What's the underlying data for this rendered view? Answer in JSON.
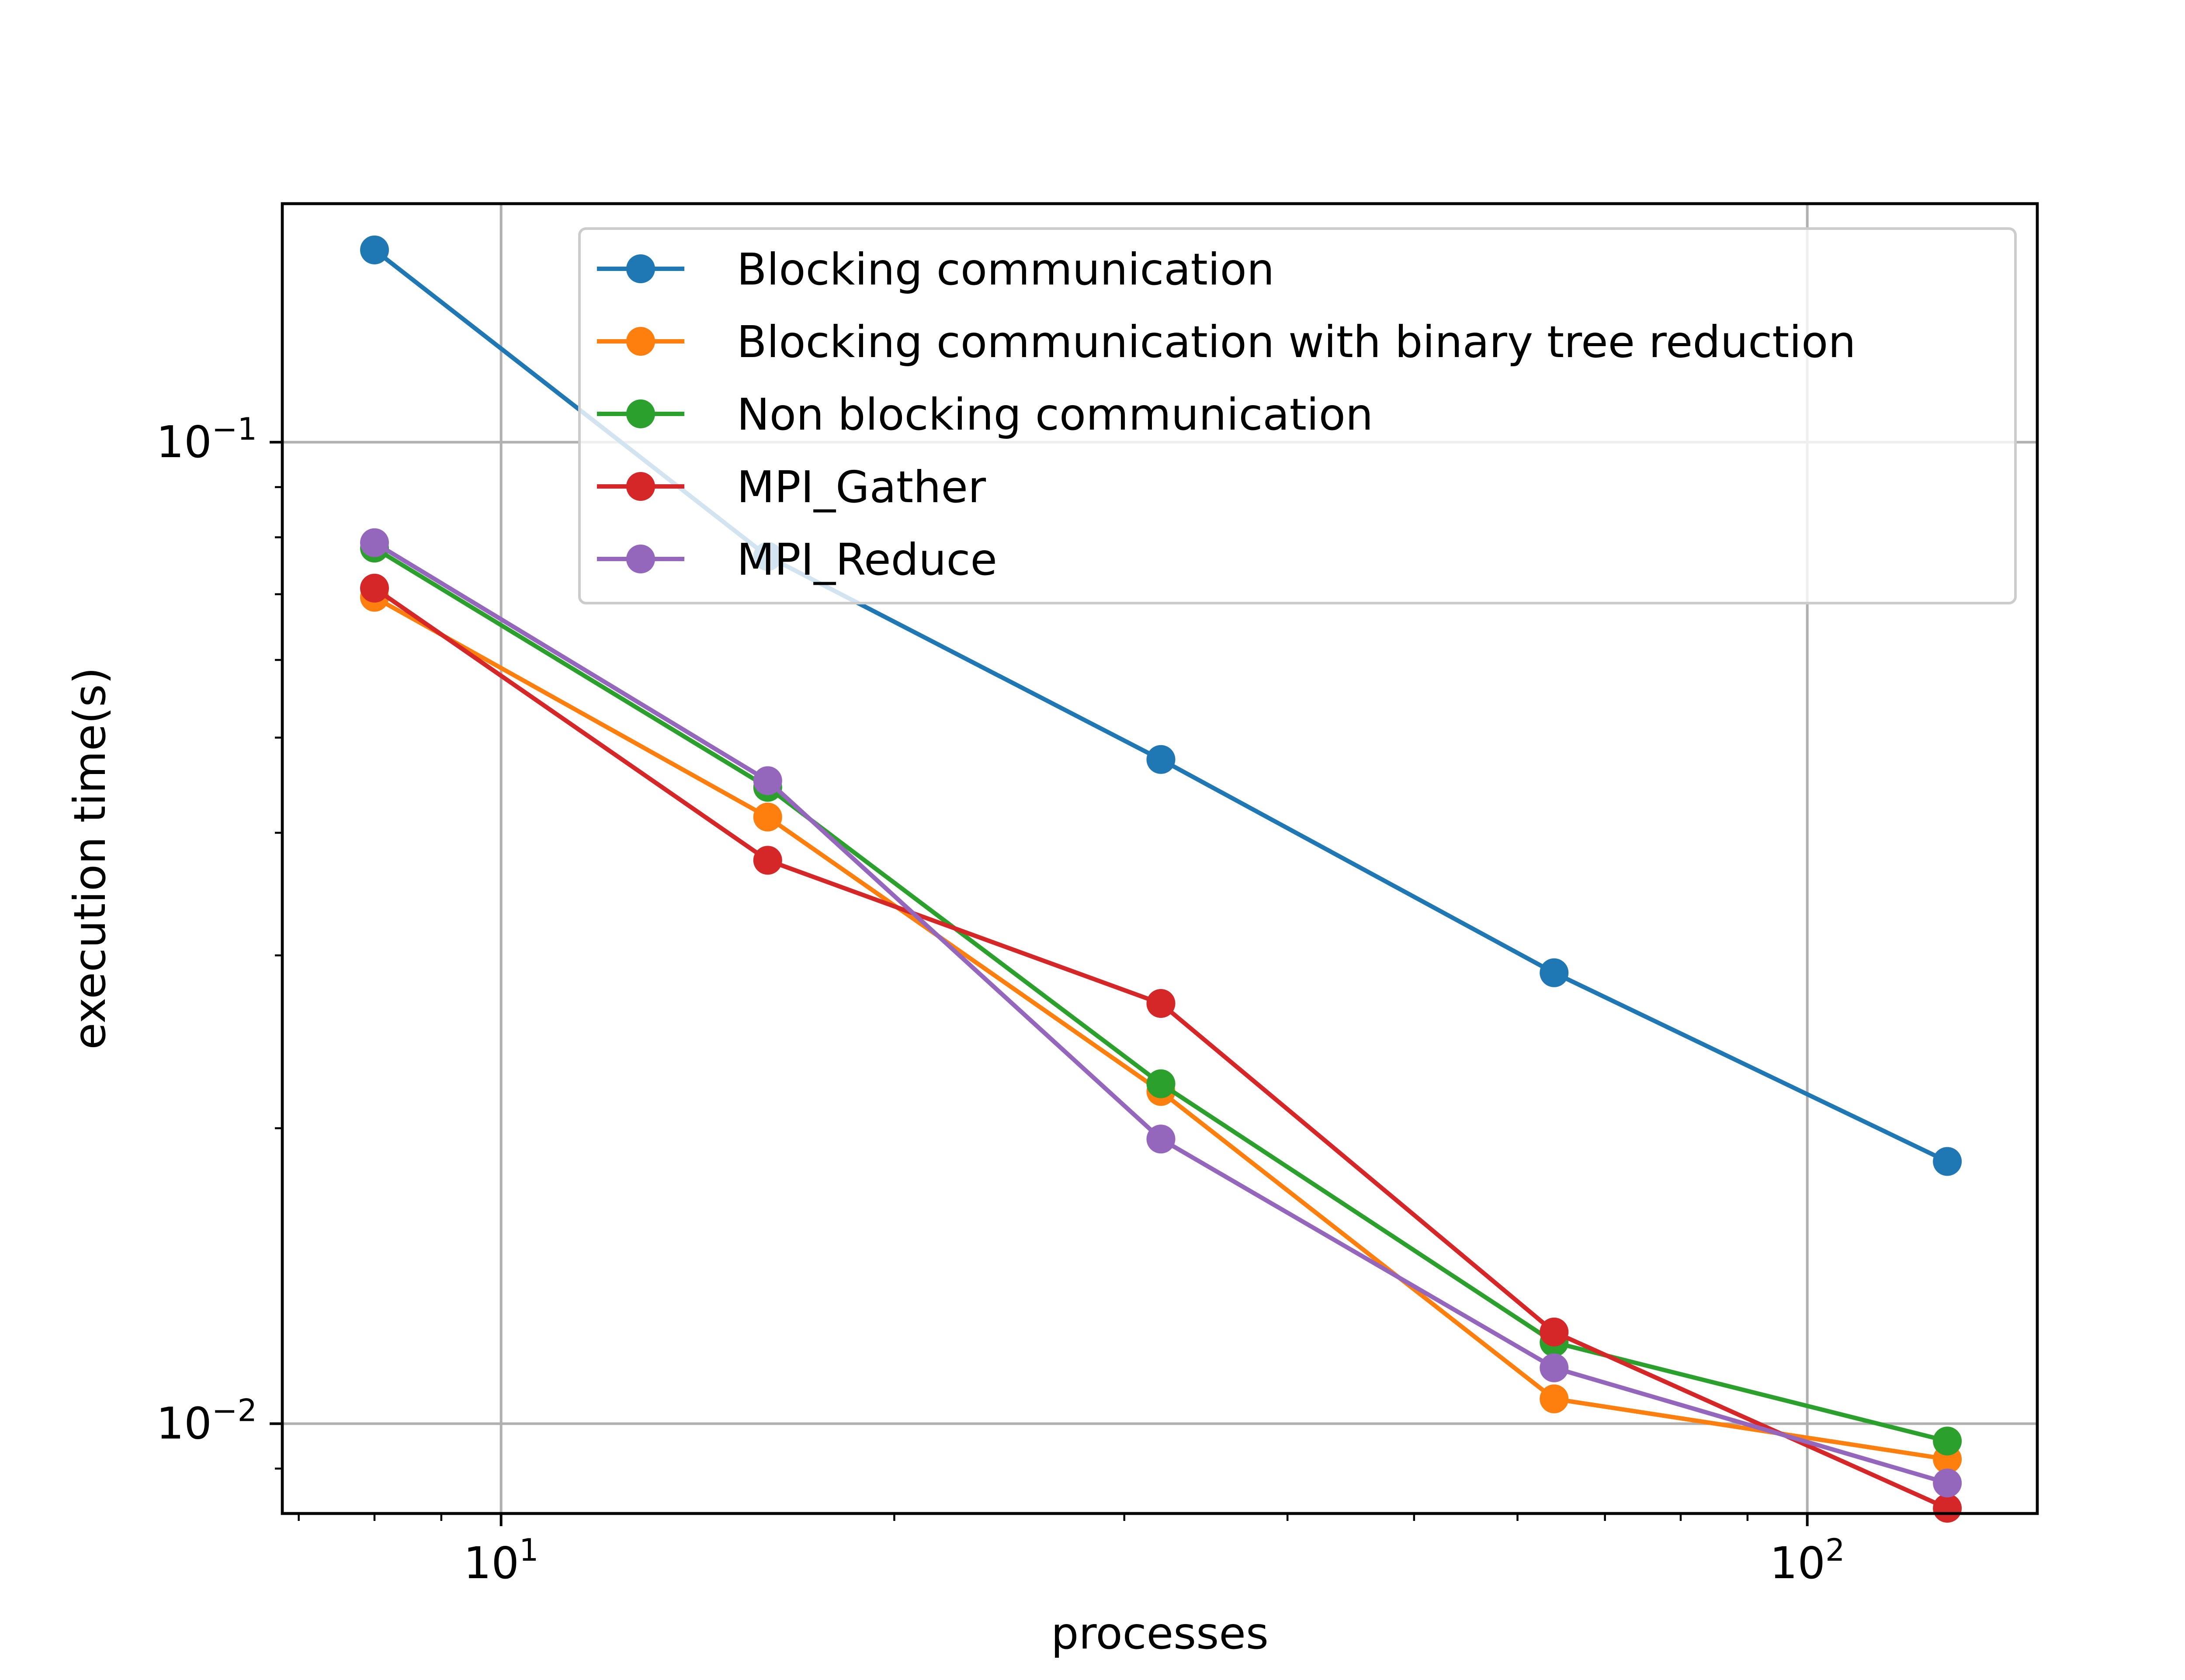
{
  "chart_data": {
    "type": "line",
    "title": "",
    "xlabel": "processes",
    "ylabel": "execution time(s)",
    "x_scale": "log",
    "y_scale": "log",
    "xlim": [
      6.8,
      150
    ],
    "ylim": [
      0.0081,
      0.175
    ],
    "x_ticks": [
      {
        "value": 10,
        "base": "10",
        "exp": "1"
      },
      {
        "value": 100,
        "base": "10",
        "exp": "2"
      }
    ],
    "y_ticks": [
      {
        "value": 0.1,
        "base": "10",
        "exp": "−1"
      },
      {
        "value": 0.01,
        "base": "10",
        "exp": "−2"
      }
    ],
    "grid": true,
    "legend_position": "top-right",
    "x": [
      8,
      16,
      32,
      64,
      128
    ],
    "series": [
      {
        "name": "Blocking communication",
        "color": "#1f77b4",
        "values": [
          0.157,
          0.0765,
          0.0475,
          0.0288,
          0.0185
        ]
      },
      {
        "name": "Blocking communication with binary tree reduction",
        "color": "#ff7f0e",
        "values": [
          0.0695,
          0.0415,
          0.0218,
          0.0106,
          0.0092
        ]
      },
      {
        "name": "Non blocking communication",
        "color": "#2ca02c",
        "values": [
          0.078,
          0.0445,
          0.0222,
          0.0121,
          0.0096
        ]
      },
      {
        "name": "MPI_Gather",
        "color": "#d62728",
        "values": [
          0.071,
          0.0375,
          0.0268,
          0.0124,
          0.0082
        ]
      },
      {
        "name": "MPI_Reduce",
        "color": "#9467bd",
        "values": [
          0.079,
          0.0452,
          0.0195,
          0.0114,
          0.0087
        ]
      }
    ]
  }
}
